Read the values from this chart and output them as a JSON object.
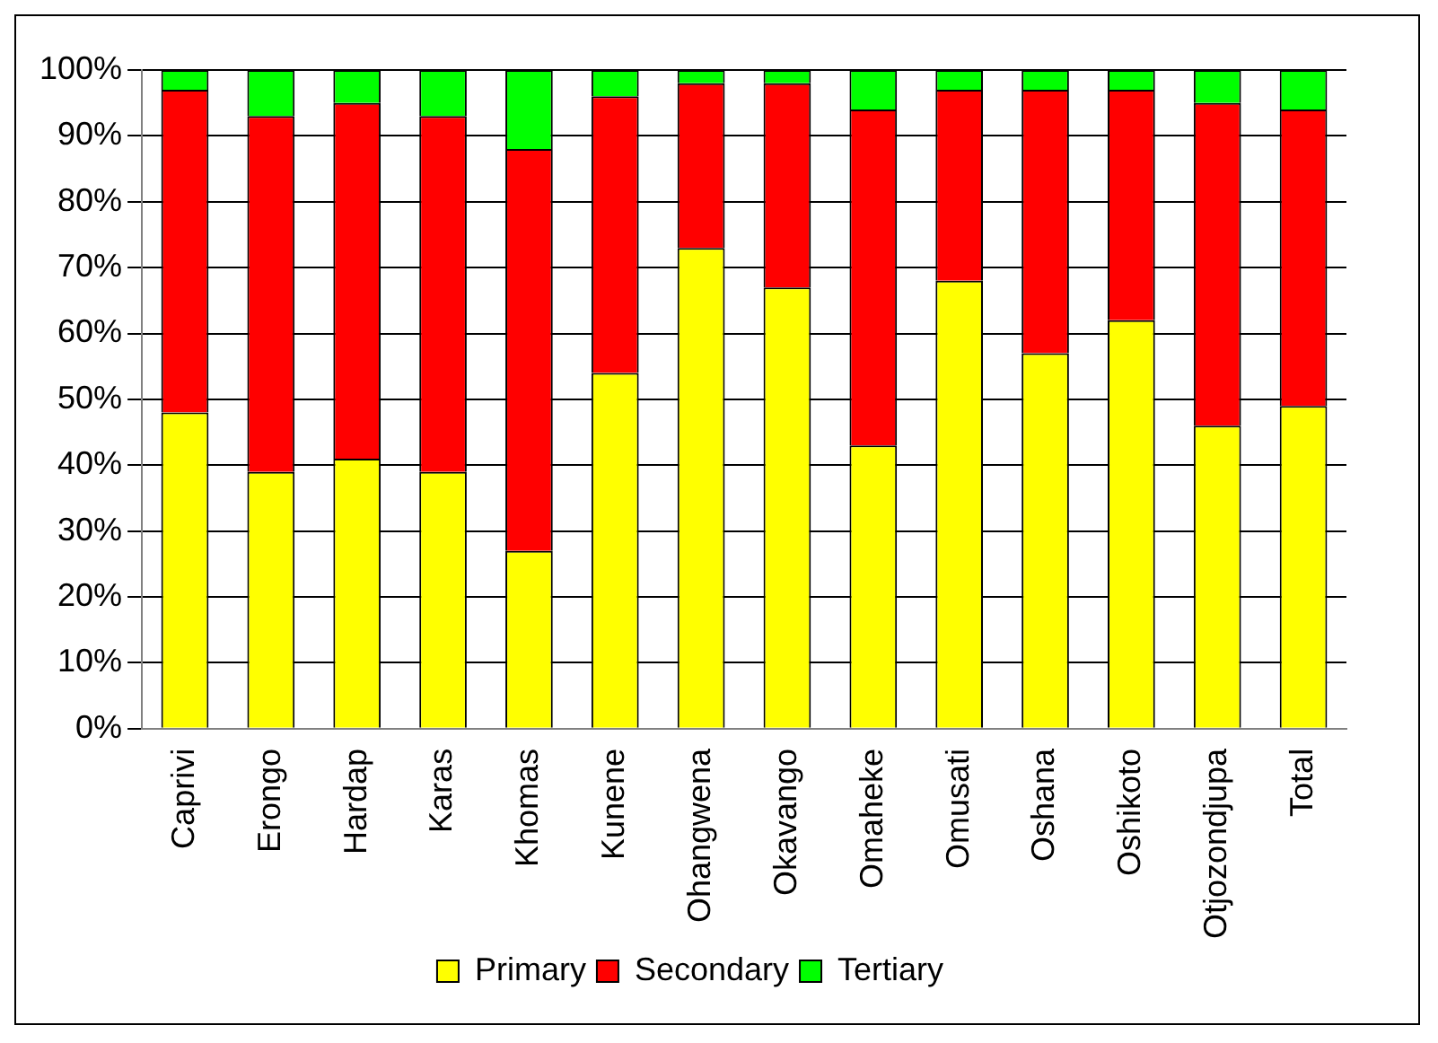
{
  "chart_data": {
    "type": "bar",
    "stacked": true,
    "categories": [
      "Caprivi",
      "Erongo",
      "Hardap",
      "Karas",
      "Khomas",
      "Kunene",
      "Ohangwena",
      "Okavango",
      "Omaheke",
      "Omusati",
      "Oshana",
      "Oshikoto",
      "Otjozondjupa",
      "Total"
    ],
    "series": [
      {
        "name": "Primary",
        "color": "#ffff00",
        "values": [
          48,
          39,
          41,
          39,
          27,
          54,
          73,
          67,
          43,
          68,
          57,
          62,
          46,
          49
        ]
      },
      {
        "name": "Secondary",
        "color": "#ff0000",
        "values": [
          49,
          54,
          54,
          54,
          61,
          42,
          25,
          31,
          51,
          29,
          40,
          35,
          49,
          45
        ]
      },
      {
        "name": "Tertiary",
        "color": "#00ff00",
        "values": [
          3,
          7,
          5,
          7,
          12,
          4,
          2,
          2,
          6,
          3,
          3,
          3,
          5,
          6
        ]
      }
    ],
    "ylim": [
      0,
      100
    ],
    "yticks": [
      {
        "value": 0,
        "label": "0%"
      },
      {
        "value": 10,
        "label": "10%"
      },
      {
        "value": 20,
        "label": "20%"
      },
      {
        "value": 30,
        "label": "30%"
      },
      {
        "value": 40,
        "label": "40%"
      },
      {
        "value": 50,
        "label": "50%"
      },
      {
        "value": 60,
        "label": "60%"
      },
      {
        "value": 70,
        "label": "70%"
      },
      {
        "value": 80,
        "label": "80%"
      },
      {
        "value": 90,
        "label": "90%"
      },
      {
        "value": 100,
        "label": "100%"
      }
    ],
    "grid": "y",
    "legend": "bottom"
  }
}
